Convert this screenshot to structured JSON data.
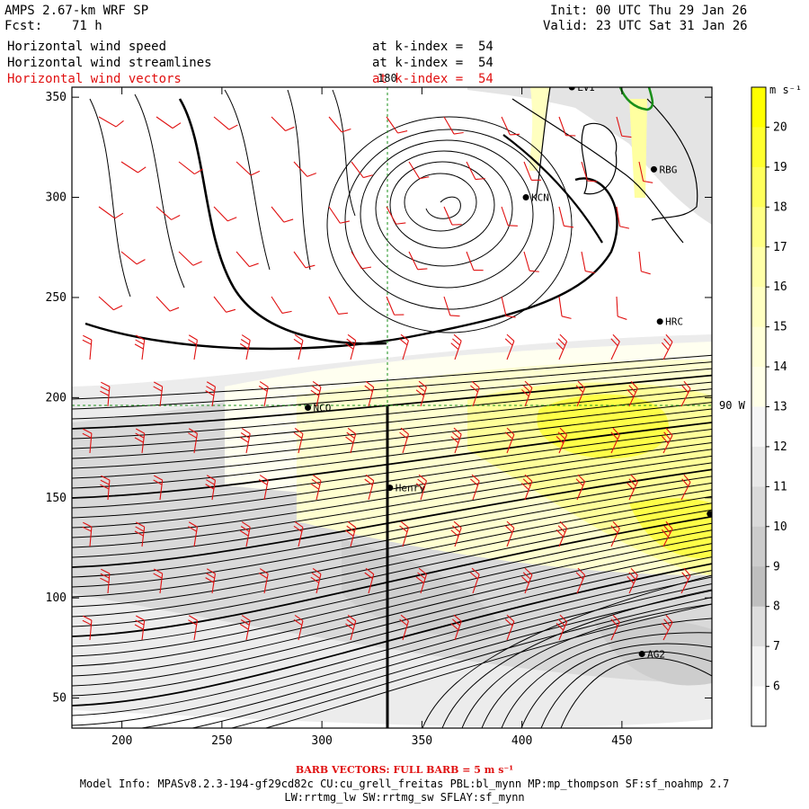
{
  "header": {
    "model": "AMPS 2.67-km WRF SP",
    "fcst_label": "Fcst:",
    "fcst_value": "71 h",
    "init": "Init: 00 UTC Thu 29 Jan 26",
    "valid": "Valid: 23 UTC Sat 31 Jan 26"
  },
  "fields": [
    {
      "name": "Horizontal wind speed",
      "level": "at k-index =  54"
    },
    {
      "name": "Horizontal wind streamlines",
      "level": "at k-index =  54"
    },
    {
      "name": "Horizontal wind vectors",
      "level": "at k-index =  54",
      "color": "#e01010"
    }
  ],
  "map": {
    "x_ticks": [
      "200",
      "250",
      "300",
      "350",
      "400",
      "450"
    ],
    "y_ticks": [
      "50",
      "100",
      "150",
      "200",
      "250",
      "300",
      "350"
    ],
    "meridian_label": "180",
    "parallel_label": "90 W",
    "stations": [
      {
        "id": "LVI",
        "x": 425,
        "y": 355
      },
      {
        "id": "RBG",
        "x": 466,
        "y": 314
      },
      {
        "id": "KCN",
        "x": 402,
        "y": 300
      },
      {
        "id": "HRC",
        "x": 469,
        "y": 238
      },
      {
        "id": "NCO",
        "x": 293,
        "y": 195
      },
      {
        "id": "Henry",
        "x": 334,
        "y": 155
      },
      {
        "id": "",
        "x": 494,
        "y": 142
      },
      {
        "id": "AG2",
        "x": 460,
        "y": 72
      }
    ]
  },
  "colorbar": {
    "unit": "m s⁻¹",
    "labels": [
      "20",
      "19",
      "18",
      "17",
      "16",
      "15",
      "14",
      "13",
      "12",
      "11",
      "10",
      "9",
      "8",
      "7",
      "6"
    ],
    "colors": [
      "#ffff00",
      "#ffff2e",
      "#ffff5c",
      "#ffff85",
      "#ffffa8",
      "#ffffc2",
      "#ffffd8",
      "#ffffe8",
      "#f6f6f6",
      "#e8e8e8",
      "#dadada",
      "#cccccc",
      "#bfbfbf",
      "#dedede",
      "#f2f2f2",
      "#ffffff"
    ]
  },
  "footer": {
    "barb": "BARB VECTORS:  FULL BARB = 5 m s⁻¹",
    "model_info": "Model Info: MPASv8.2.3-194-gf29cd82c CU:cu_grell_freitas PBL:bl_mynn MP:mp_thompson SF:sf_noahmp 2.7",
    "model_info_2": "LW:rrtmg_lw SW:rrtmg_sw SFLAY:sf_mynn"
  }
}
